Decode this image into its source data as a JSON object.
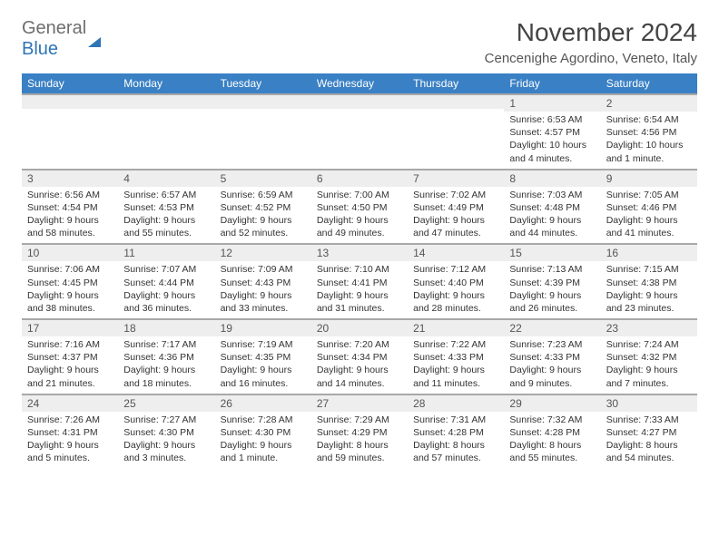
{
  "logo": {
    "word1": "General",
    "word2": "Blue"
  },
  "title": "November 2024",
  "location": "Cencenighe Agordino, Veneto, Italy",
  "day_headers": [
    "Sunday",
    "Monday",
    "Tuesday",
    "Wednesday",
    "Thursday",
    "Friday",
    "Saturday"
  ],
  "style": {
    "header_bg": "#3a80c4",
    "header_fg": "#ffffff",
    "daynum_bg": "#eeeeee",
    "border_color": "#a8a8a8",
    "title_color": "#444444",
    "text_color": "#333333",
    "logo_gray": "#6e6e6e",
    "logo_blue": "#2e75b6",
    "font_title": 28,
    "font_location": 15,
    "font_header": 12,
    "font_daynum": 12,
    "font_body": 10.5
  },
  "weeks": [
    [
      null,
      null,
      null,
      null,
      null,
      {
        "n": "1",
        "sunrise": "Sunrise: 6:53 AM",
        "sunset": "Sunset: 4:57 PM",
        "daylight": "Daylight: 10 hours and 4 minutes."
      },
      {
        "n": "2",
        "sunrise": "Sunrise: 6:54 AM",
        "sunset": "Sunset: 4:56 PM",
        "daylight": "Daylight: 10 hours and 1 minute."
      }
    ],
    [
      {
        "n": "3",
        "sunrise": "Sunrise: 6:56 AM",
        "sunset": "Sunset: 4:54 PM",
        "daylight": "Daylight: 9 hours and 58 minutes."
      },
      {
        "n": "4",
        "sunrise": "Sunrise: 6:57 AM",
        "sunset": "Sunset: 4:53 PM",
        "daylight": "Daylight: 9 hours and 55 minutes."
      },
      {
        "n": "5",
        "sunrise": "Sunrise: 6:59 AM",
        "sunset": "Sunset: 4:52 PM",
        "daylight": "Daylight: 9 hours and 52 minutes."
      },
      {
        "n": "6",
        "sunrise": "Sunrise: 7:00 AM",
        "sunset": "Sunset: 4:50 PM",
        "daylight": "Daylight: 9 hours and 49 minutes."
      },
      {
        "n": "7",
        "sunrise": "Sunrise: 7:02 AM",
        "sunset": "Sunset: 4:49 PM",
        "daylight": "Daylight: 9 hours and 47 minutes."
      },
      {
        "n": "8",
        "sunrise": "Sunrise: 7:03 AM",
        "sunset": "Sunset: 4:48 PM",
        "daylight": "Daylight: 9 hours and 44 minutes."
      },
      {
        "n": "9",
        "sunrise": "Sunrise: 7:05 AM",
        "sunset": "Sunset: 4:46 PM",
        "daylight": "Daylight: 9 hours and 41 minutes."
      }
    ],
    [
      {
        "n": "10",
        "sunrise": "Sunrise: 7:06 AM",
        "sunset": "Sunset: 4:45 PM",
        "daylight": "Daylight: 9 hours and 38 minutes."
      },
      {
        "n": "11",
        "sunrise": "Sunrise: 7:07 AM",
        "sunset": "Sunset: 4:44 PM",
        "daylight": "Daylight: 9 hours and 36 minutes."
      },
      {
        "n": "12",
        "sunrise": "Sunrise: 7:09 AM",
        "sunset": "Sunset: 4:43 PM",
        "daylight": "Daylight: 9 hours and 33 minutes."
      },
      {
        "n": "13",
        "sunrise": "Sunrise: 7:10 AM",
        "sunset": "Sunset: 4:41 PM",
        "daylight": "Daylight: 9 hours and 31 minutes."
      },
      {
        "n": "14",
        "sunrise": "Sunrise: 7:12 AM",
        "sunset": "Sunset: 4:40 PM",
        "daylight": "Daylight: 9 hours and 28 minutes."
      },
      {
        "n": "15",
        "sunrise": "Sunrise: 7:13 AM",
        "sunset": "Sunset: 4:39 PM",
        "daylight": "Daylight: 9 hours and 26 minutes."
      },
      {
        "n": "16",
        "sunrise": "Sunrise: 7:15 AM",
        "sunset": "Sunset: 4:38 PM",
        "daylight": "Daylight: 9 hours and 23 minutes."
      }
    ],
    [
      {
        "n": "17",
        "sunrise": "Sunrise: 7:16 AM",
        "sunset": "Sunset: 4:37 PM",
        "daylight": "Daylight: 9 hours and 21 minutes."
      },
      {
        "n": "18",
        "sunrise": "Sunrise: 7:17 AM",
        "sunset": "Sunset: 4:36 PM",
        "daylight": "Daylight: 9 hours and 18 minutes."
      },
      {
        "n": "19",
        "sunrise": "Sunrise: 7:19 AM",
        "sunset": "Sunset: 4:35 PM",
        "daylight": "Daylight: 9 hours and 16 minutes."
      },
      {
        "n": "20",
        "sunrise": "Sunrise: 7:20 AM",
        "sunset": "Sunset: 4:34 PM",
        "daylight": "Daylight: 9 hours and 14 minutes."
      },
      {
        "n": "21",
        "sunrise": "Sunrise: 7:22 AM",
        "sunset": "Sunset: 4:33 PM",
        "daylight": "Daylight: 9 hours and 11 minutes."
      },
      {
        "n": "22",
        "sunrise": "Sunrise: 7:23 AM",
        "sunset": "Sunset: 4:33 PM",
        "daylight": "Daylight: 9 hours and 9 minutes."
      },
      {
        "n": "23",
        "sunrise": "Sunrise: 7:24 AM",
        "sunset": "Sunset: 4:32 PM",
        "daylight": "Daylight: 9 hours and 7 minutes."
      }
    ],
    [
      {
        "n": "24",
        "sunrise": "Sunrise: 7:26 AM",
        "sunset": "Sunset: 4:31 PM",
        "daylight": "Daylight: 9 hours and 5 minutes."
      },
      {
        "n": "25",
        "sunrise": "Sunrise: 7:27 AM",
        "sunset": "Sunset: 4:30 PM",
        "daylight": "Daylight: 9 hours and 3 minutes."
      },
      {
        "n": "26",
        "sunrise": "Sunrise: 7:28 AM",
        "sunset": "Sunset: 4:30 PM",
        "daylight": "Daylight: 9 hours and 1 minute."
      },
      {
        "n": "27",
        "sunrise": "Sunrise: 7:29 AM",
        "sunset": "Sunset: 4:29 PM",
        "daylight": "Daylight: 8 hours and 59 minutes."
      },
      {
        "n": "28",
        "sunrise": "Sunrise: 7:31 AM",
        "sunset": "Sunset: 4:28 PM",
        "daylight": "Daylight: 8 hours and 57 minutes."
      },
      {
        "n": "29",
        "sunrise": "Sunrise: 7:32 AM",
        "sunset": "Sunset: 4:28 PM",
        "daylight": "Daylight: 8 hours and 55 minutes."
      },
      {
        "n": "30",
        "sunrise": "Sunrise: 7:33 AM",
        "sunset": "Sunset: 4:27 PM",
        "daylight": "Daylight: 8 hours and 54 minutes."
      }
    ]
  ]
}
